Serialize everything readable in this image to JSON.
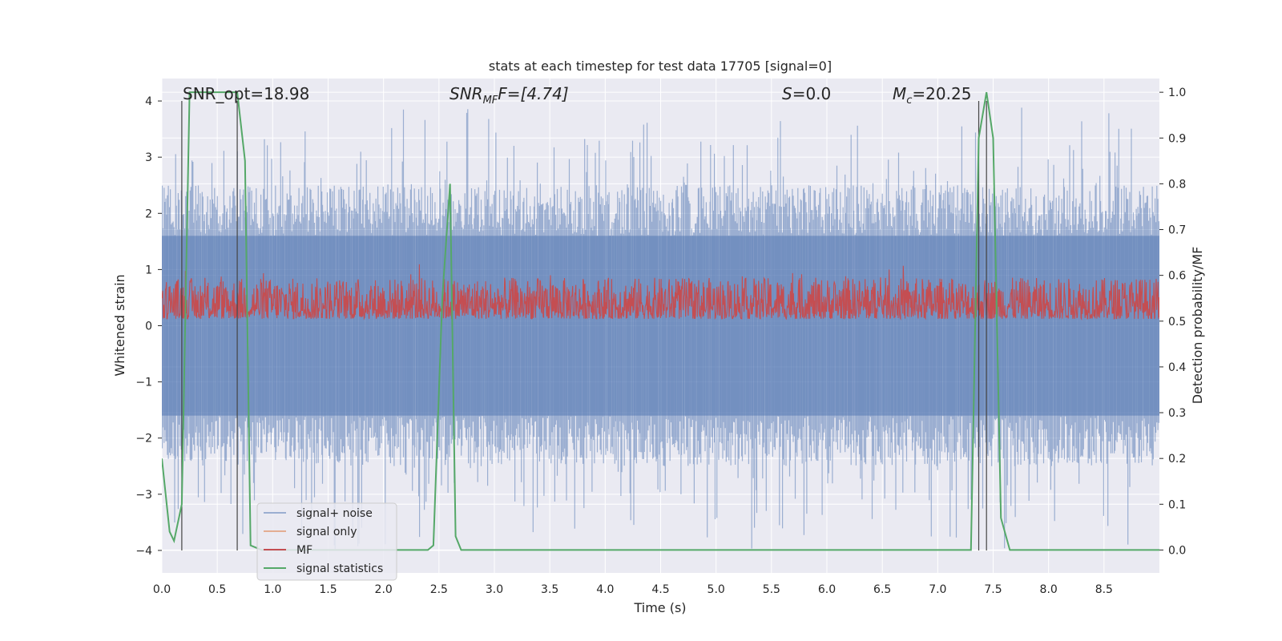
{
  "chart_data": {
    "type": "line",
    "title": "stats at each timestep for test data 17705 [signal=0]",
    "xlabel": "Time (s)",
    "ylabel_left": "Whitened strain",
    "ylabel_right": "Detection probability/MF",
    "xlim": [
      0.0,
      9.0
    ],
    "ylim_left": [
      -4.4,
      4.4
    ],
    "ylim_right": [
      -0.05,
      1.03
    ],
    "grid": true,
    "x_ticks": [
      "0.0",
      "0.5",
      "1.0",
      "1.5",
      "2.0",
      "2.5",
      "3.0",
      "3.5",
      "4.0",
      "4.5",
      "5.0",
      "5.5",
      "6.0",
      "6.5",
      "7.0",
      "7.5",
      "8.0",
      "8.5"
    ],
    "y_left_ticks": [
      "4",
      "3",
      "2",
      "1",
      "0",
      "−1",
      "−2",
      "−3",
      "−4"
    ],
    "y_right_ticks": [
      "1.0",
      "0.9",
      "0.8",
      "0.7",
      "0.6",
      "0.5",
      "0.4",
      "0.3",
      "0.2",
      "0.1",
      "0.0"
    ],
    "annotations": [
      {
        "text": "SNR_opt=18.98"
      },
      {
        "base": "SNR",
        "sub": "MF",
        "tail": "F=[4.74]"
      },
      {
        "base": "S",
        "tail": "=0.0"
      },
      {
        "base": "M",
        "sub": "c",
        "tail": "=20.25"
      }
    ],
    "vlines_x": [
      0.18,
      0.68,
      7.37,
      7.44
    ],
    "series": [
      {
        "name": "signal+ noise",
        "color": "#4c72b0",
        "axis": "left",
        "style": "noise band, amplitude mostly within ±2.5, spikes to ±4"
      },
      {
        "name": "signal only",
        "color": "#dd8452",
        "axis": "left",
        "values": []
      },
      {
        "name": "MF",
        "color": "#c44e52",
        "axis": "right",
        "style": "noisy trace between 0.5 and 0.62"
      },
      {
        "name": "signal statistics",
        "color": "#55a868",
        "axis": "right",
        "x": [
          0.0,
          0.07,
          0.11,
          0.18,
          0.25,
          0.68,
          0.75,
          0.8,
          0.9,
          2.4,
          2.45,
          2.53,
          2.6,
          2.65,
          2.7,
          7.3,
          7.37,
          7.44,
          7.5,
          7.57,
          7.65,
          7.7,
          9.0
        ],
        "values": [
          0.2,
          0.04,
          0.02,
          0.1,
          1.0,
          1.0,
          0.85,
          0.01,
          0.0,
          0.0,
          0.01,
          0.55,
          0.8,
          0.03,
          0.0,
          0.0,
          0.9,
          1.0,
          0.9,
          0.07,
          0.0,
          0.0,
          0.0
        ]
      }
    ],
    "legend": {
      "position": "lower-left",
      "entries": [
        {
          "label": "signal+ noise",
          "color": "#4c72b0"
        },
        {
          "label": "signal only",
          "color": "#dd8452"
        },
        {
          "label": "MF",
          "color": "#c44e52"
        },
        {
          "label": "signal statistics",
          "color": "#55a868"
        }
      ]
    }
  }
}
